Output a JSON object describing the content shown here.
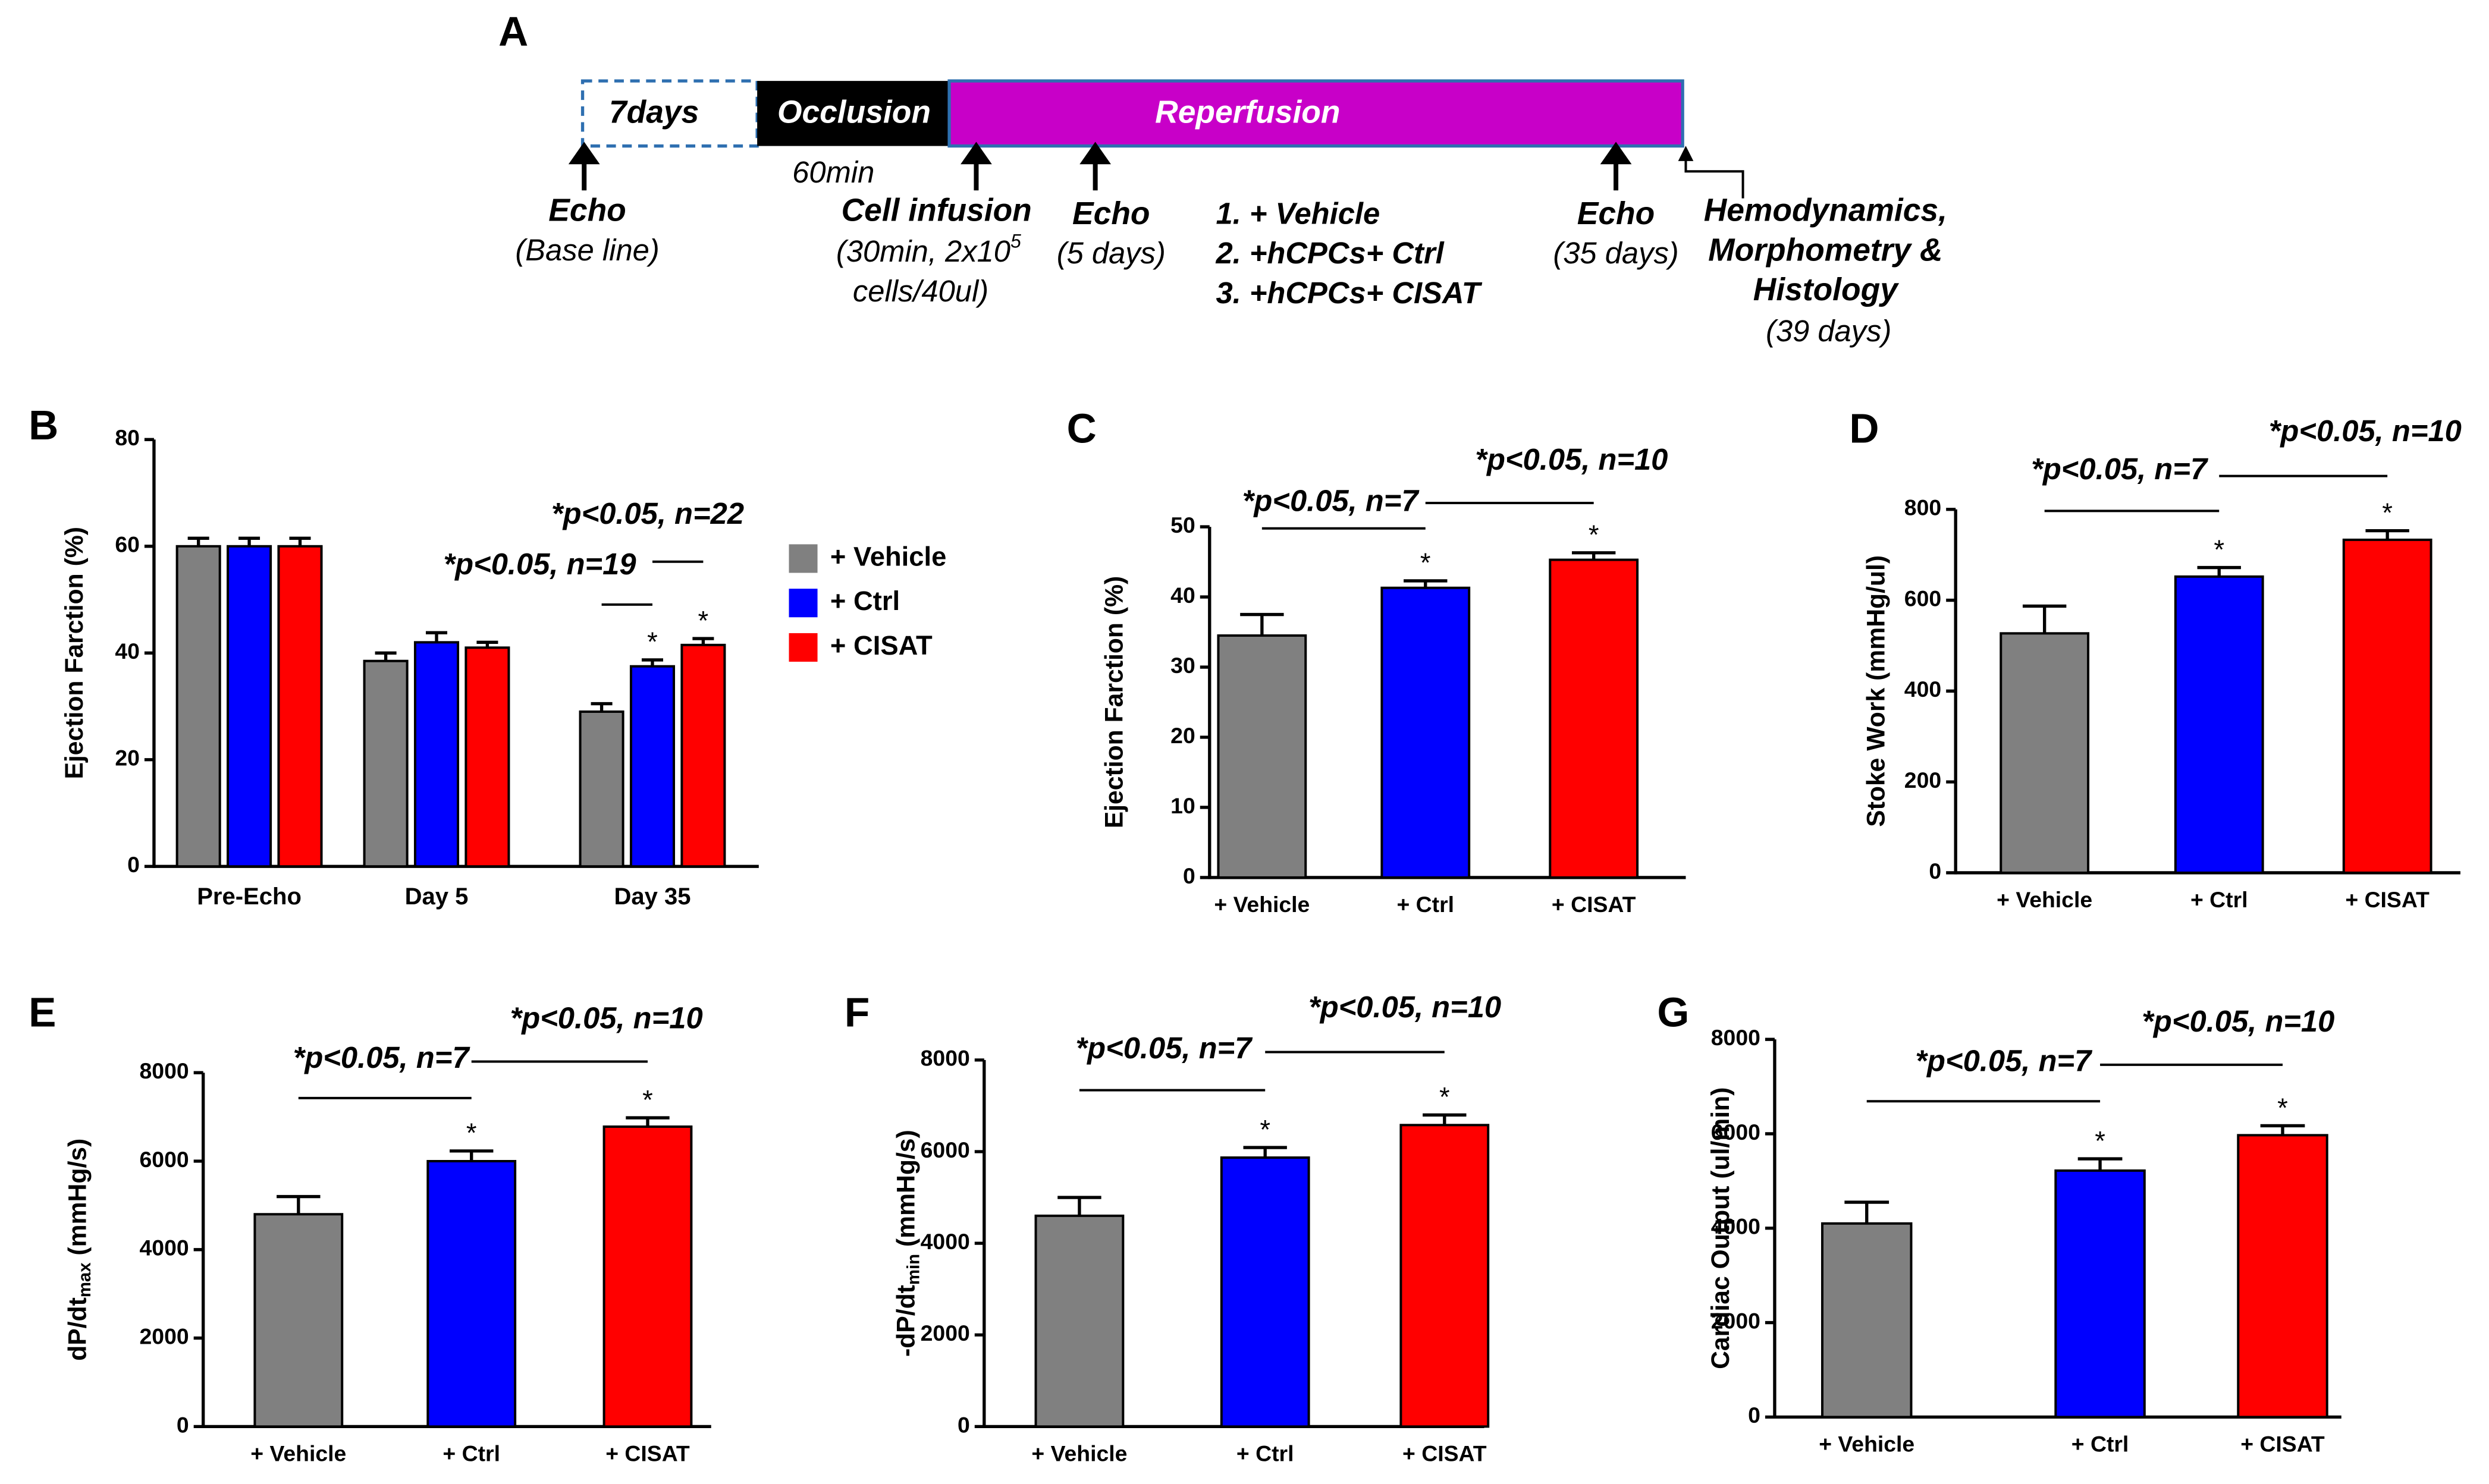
{
  "diagram": {
    "panel": "A",
    "baseline_box": "7days",
    "occlusion_box": "Occlusion",
    "reperfusion_box": "Reperfusion",
    "occlusion_time": "60min",
    "echo_baseline": {
      "label": "Echo",
      "detail": "(Base line)"
    },
    "cell_infusion": {
      "label": "Cell infusion",
      "detail_1": "(30min, 2x10",
      "detail_1_sup": "5",
      "detail_2": "cells/40ul)"
    },
    "echo_day5": {
      "label": "Echo",
      "detail": "(5 days)"
    },
    "groups": [
      "1. + Vehicle",
      "2. +hCPCs+ Ctrl",
      "3. +hCPCs+ CISAT"
    ],
    "echo_day35": {
      "label": "Echo",
      "detail": "(35 days)"
    },
    "endpoint": {
      "lines": [
        "Hemodynamics,",
        "Morphometry &",
        "Histology"
      ],
      "detail": "(39 days)"
    }
  },
  "chart_data": [
    {
      "type": "bar",
      "panel": "B",
      "ylabel": "Ejection Farction (%)",
      "categories": [
        "Pre-Echo",
        "Day 5",
        "Day 35"
      ],
      "series": [
        {
          "name": "+ Vehicle",
          "color": "#808080",
          "values": [
            60,
            38.5,
            29
          ],
          "errors": [
            1.5,
            1.5,
            1.5
          ],
          "stars": [
            null,
            null,
            null
          ]
        },
        {
          "name": "+ Ctrl",
          "color": "#0000ff",
          "values": [
            60,
            42,
            37.5
          ],
          "errors": [
            1.5,
            1.8,
            1.2
          ],
          "stars": [
            null,
            null,
            "*"
          ]
        },
        {
          "name": "+ CISAT",
          "color": "#ff0000",
          "values": [
            60,
            41,
            41.5
          ],
          "errors": [
            1.5,
            1,
            1.2
          ],
          "stars": [
            null,
            null,
            "*"
          ]
        }
      ],
      "ylim": [
        0,
        80
      ],
      "yticks": [
        0,
        20,
        40,
        60,
        80
      ],
      "annotations": [
        "*p<0.05, n=19",
        "*p<0.05, n=22"
      ]
    },
    {
      "type": "bar",
      "panel": "C",
      "ylabel": "Ejection Farction (%)",
      "categories": [
        "+ Vehicle",
        "+ Ctrl",
        "+ CISAT"
      ],
      "values": [
        34.5,
        41.3,
        45.3
      ],
      "errors": [
        3,
        1,
        1
      ],
      "colors": [
        "#808080",
        "#0000ff",
        "#ff0000"
      ],
      "stars": [
        null,
        "*",
        "*"
      ],
      "ylim": [
        0,
        50
      ],
      "yticks": [
        0,
        10,
        20,
        30,
        40,
        50
      ],
      "annotations": [
        "*p<0.05, n=7",
        "*p<0.05, n=10"
      ]
    },
    {
      "type": "bar",
      "panel": "D",
      "ylabel": "Stoke Work (mmHg/ul)",
      "categories": [
        "+ Vehicle",
        "+ Ctrl",
        "+ CISAT"
      ],
      "values": [
        527,
        652,
        733
      ],
      "errors": [
        60,
        20,
        20
      ],
      "colors": [
        "#808080",
        "#0000ff",
        "#ff0000"
      ],
      "stars": [
        null,
        "*",
        "*"
      ],
      "ylim": [
        0,
        800
      ],
      "yticks": [
        0,
        200,
        400,
        600,
        800
      ],
      "annotations": [
        "*p<0.05, n=7",
        "*p<0.05, n=10"
      ]
    },
    {
      "type": "bar",
      "panel": "E",
      "ylabel": "dP/dt",
      "ylabel_sub": "max",
      "ylabel_unit": " (mmHg/s)",
      "categories": [
        "+ Vehicle",
        "+ Ctrl",
        "+ CISAT"
      ],
      "values": [
        4800,
        6000,
        6780
      ],
      "errors": [
        400,
        230,
        200
      ],
      "colors": [
        "#808080",
        "#0000ff",
        "#ff0000"
      ],
      "stars": [
        null,
        "*",
        "*"
      ],
      "ylim": [
        0,
        8000
      ],
      "yticks": [
        0,
        2000,
        4000,
        6000,
        8000
      ],
      "annotations": [
        "*p<0.05, n=7",
        "*p<0.05, n=10"
      ]
    },
    {
      "type": "bar",
      "panel": "F",
      "ylabel": "-dP/dt",
      "ylabel_sub": "min",
      "ylabel_unit": " (mmHg/s)",
      "categories": [
        "+ Vehicle",
        "+ Ctrl",
        "+ CISAT"
      ],
      "values": [
        4600,
        5870,
        6580
      ],
      "errors": [
        400,
        220,
        220
      ],
      "colors": [
        "#808080",
        "#0000ff",
        "#ff0000"
      ],
      "stars": [
        null,
        "*",
        "*"
      ],
      "ylim": [
        0,
        8000
      ],
      "yticks": [
        0,
        2000,
        4000,
        6000,
        8000
      ],
      "annotations": [
        "*p<0.05, n=7",
        "*p<0.05, n=10"
      ]
    },
    {
      "type": "bar",
      "panel": "G",
      "ylabel": "Cardiac Output (ul/min)",
      "categories": [
        "+ Vehicle",
        "+ Ctrl",
        "+ CISAT"
      ],
      "values": [
        4100,
        5220,
        5970
      ],
      "errors": [
        450,
        250,
        200
      ],
      "colors": [
        "#808080",
        "#0000ff",
        "#ff0000"
      ],
      "stars": [
        null,
        "*",
        "*"
      ],
      "ylim": [
        0,
        8000
      ],
      "yticks": [
        0,
        2000,
        4000,
        6000,
        8000
      ],
      "annotations": [
        "*p<0.05, n=7",
        "*p<0.05, n=10"
      ]
    }
  ]
}
